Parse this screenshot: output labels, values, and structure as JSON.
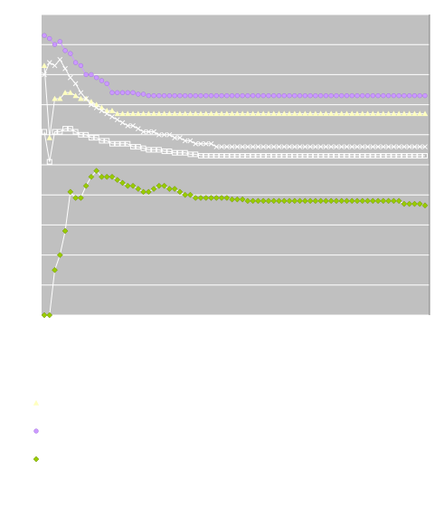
{
  "chart_data": {
    "type": "line",
    "title": "",
    "xlabel": "",
    "ylabel": "",
    "grid": true,
    "ylim": [
      0,
      10
    ],
    "plot_background": "#c0c0c0",
    "gridline_color": "#ffffff",
    "legend_position": "bottom-left",
    "series": [
      {
        "color": "#ffffc0",
        "marker": "triangle",
        "values": [
          8.3,
          5.9,
          7.2,
          7.2,
          7.4,
          7.4,
          7.3,
          7.2,
          7.2,
          7.1,
          7.0,
          6.9,
          6.8,
          6.8,
          6.7,
          6.7,
          6.7,
          6.7,
          6.7,
          6.7,
          6.7,
          6.7,
          6.7,
          6.7,
          6.7,
          6.7,
          6.7,
          6.7,
          6.7,
          6.7,
          6.7,
          6.7,
          6.7,
          6.7,
          6.7,
          6.7,
          6.7,
          6.7,
          6.7,
          6.7,
          6.7,
          6.7,
          6.7,
          6.7,
          6.7,
          6.7,
          6.7,
          6.7,
          6.7,
          6.7,
          6.7,
          6.7,
          6.7,
          6.7,
          6.7,
          6.7,
          6.7,
          6.7,
          6.7,
          6.7,
          6.7,
          6.7,
          6.7,
          6.7,
          6.7,
          6.7,
          6.7,
          6.7,
          6.7,
          6.7,
          6.7,
          6.7,
          6.7,
          6.7
        ]
      },
      {
        "color": "#cc99ff",
        "marker": "circle",
        "values": [
          9.3,
          9.2,
          9.0,
          9.1,
          8.8,
          8.7,
          8.4,
          8.3,
          8.0,
          8.0,
          7.9,
          7.8,
          7.7,
          7.4,
          7.4,
          7.4,
          7.4,
          7.4,
          7.35,
          7.35,
          7.3,
          7.3,
          7.3,
          7.3,
          7.3,
          7.3,
          7.3,
          7.3,
          7.3,
          7.3,
          7.3,
          7.3,
          7.3,
          7.3,
          7.3,
          7.3,
          7.3,
          7.3,
          7.3,
          7.3,
          7.3,
          7.3,
          7.3,
          7.3,
          7.3,
          7.3,
          7.3,
          7.3,
          7.3,
          7.3,
          7.3,
          7.3,
          7.3,
          7.3,
          7.3,
          7.3,
          7.3,
          7.3,
          7.3,
          7.3,
          7.3,
          7.3,
          7.3,
          7.3,
          7.3,
          7.3,
          7.3,
          7.3,
          7.3,
          7.3,
          7.3,
          7.3,
          7.3,
          7.3
        ]
      },
      {
        "color": "#ffffff",
        "marker": "x",
        "values": [
          8.0,
          8.4,
          8.3,
          8.5,
          8.2,
          7.9,
          7.7,
          7.4,
          7.2,
          7.0,
          6.9,
          6.8,
          6.7,
          6.6,
          6.5,
          6.4,
          6.3,
          6.3,
          6.2,
          6.1,
          6.1,
          6.1,
          6.0,
          6.0,
          6.0,
          5.9,
          5.9,
          5.8,
          5.8,
          5.7,
          5.7,
          5.7,
          5.7,
          5.6,
          5.6,
          5.6,
          5.6,
          5.6,
          5.6,
          5.6,
          5.6,
          5.6,
          5.6,
          5.6,
          5.6,
          5.6,
          5.6,
          5.6,
          5.6,
          5.6,
          5.6,
          5.6,
          5.6,
          5.6,
          5.6,
          5.6,
          5.6,
          5.6,
          5.6,
          5.6,
          5.6,
          5.6,
          5.6,
          5.6,
          5.6,
          5.6,
          5.6,
          5.6,
          5.6,
          5.6,
          5.6,
          5.6,
          5.6,
          5.6
        ]
      },
      {
        "color": "#ffffff",
        "marker": "square",
        "values": [
          6.1,
          5.1,
          6.1,
          6.1,
          6.2,
          6.2,
          6.1,
          6.0,
          6.0,
          5.9,
          5.9,
          5.8,
          5.8,
          5.7,
          5.7,
          5.7,
          5.7,
          5.6,
          5.6,
          5.55,
          5.5,
          5.5,
          5.5,
          5.45,
          5.45,
          5.4,
          5.4,
          5.4,
          5.35,
          5.35,
          5.3,
          5.3,
          5.3,
          5.3,
          5.3,
          5.3,
          5.3,
          5.3,
          5.3,
          5.3,
          5.3,
          5.3,
          5.3,
          5.3,
          5.3,
          5.3,
          5.3,
          5.3,
          5.3,
          5.3,
          5.3,
          5.3,
          5.3,
          5.3,
          5.3,
          5.3,
          5.3,
          5.3,
          5.3,
          5.3,
          5.3,
          5.3,
          5.3,
          5.3,
          5.3,
          5.3,
          5.3,
          5.3,
          5.3,
          5.3,
          5.3,
          5.3,
          5.3,
          5.3
        ]
      },
      {
        "color": "#99cc00",
        "marker": "diamond",
        "values": [
          0,
          0,
          1.5,
          2.0,
          2.8,
          4.1,
          3.9,
          3.9,
          4.3,
          4.6,
          4.8,
          4.6,
          4.6,
          4.6,
          4.5,
          4.4,
          4.3,
          4.3,
          4.2,
          4.1,
          4.1,
          4.2,
          4.3,
          4.3,
          4.2,
          4.2,
          4.1,
          4.0,
          4.0,
          3.9,
          3.9,
          3.9,
          3.9,
          3.9,
          3.9,
          3.9,
          3.85,
          3.85,
          3.85,
          3.8,
          3.8,
          3.8,
          3.8,
          3.8,
          3.8,
          3.8,
          3.8,
          3.8,
          3.8,
          3.8,
          3.8,
          3.8,
          3.8,
          3.8,
          3.8,
          3.8,
          3.8,
          3.8,
          3.8,
          3.8,
          3.8,
          3.8,
          3.8,
          3.8,
          3.8,
          3.8,
          3.8,
          3.8,
          3.8,
          3.7,
          3.7,
          3.7,
          3.7,
          3.65
        ]
      }
    ]
  }
}
